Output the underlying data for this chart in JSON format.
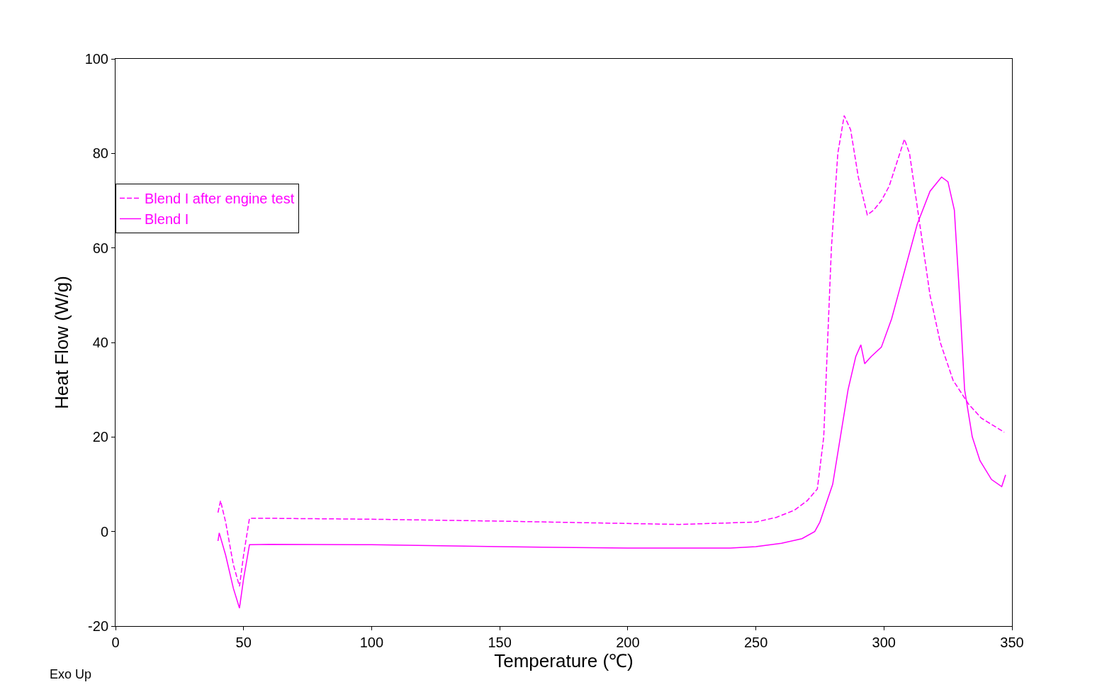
{
  "chart_data": {
    "type": "line",
    "xlabel": "Temperature (℃)",
    "ylabel": "Heat Flow (W/g)",
    "annotations": [
      "Exo Up"
    ],
    "xlim": [
      0,
      350
    ],
    "xticks": [
      0,
      50,
      100,
      150,
      200,
      250,
      300,
      350
    ],
    "ylim": [
      -20,
      100
    ],
    "yticks": [
      -20,
      0,
      20,
      40,
      60,
      80,
      100
    ],
    "legend": "top left",
    "marker": "none",
    "series": [
      {
        "name": "Blend I after engine test",
        "color": "#ff00ff",
        "line_style": "dashed",
        "x": [
          40,
          41,
          43,
          46,
          48.4,
          50,
          52.3,
          60,
          100,
          150,
          200,
          220,
          250,
          258,
          265,
          270,
          274,
          276.5,
          278,
          279.5,
          282,
          284.5,
          287,
          290,
          293.5,
          296,
          299,
          302,
          305,
          308,
          310,
          314,
          318,
          322,
          327,
          333,
          338,
          347
        ],
        "values": [
          4,
          6.5,
          2,
          -7,
          -11.6,
          -5,
          2.8,
          2.8,
          2.6,
          2.2,
          1.7,
          1.5,
          2,
          3,
          4.5,
          6.5,
          9,
          20,
          40,
          60,
          80,
          88,
          85,
          75,
          67,
          68,
          70,
          73,
          78,
          83,
          80,
          65,
          50,
          40,
          32,
          27,
          24,
          21
        ]
      },
      {
        "name": "Blend I",
        "color": "#ff00ff",
        "line_style": "solid",
        "x": [
          40,
          40.5,
          43,
          46,
          48.4,
          50,
          52.3,
          60,
          100,
          150,
          200,
          240,
          250,
          260,
          268,
          273,
          275,
          280,
          283,
          286,
          289,
          291,
          292.5,
          295,
          299,
          303,
          308,
          313,
          318,
          322.5,
          325,
          327.5,
          329.5,
          331.5,
          334.5,
          337.5,
          342,
          346,
          347.5
        ],
        "values": [
          -2,
          -0.3,
          -5,
          -12,
          -16.2,
          -10,
          -2.8,
          -2.7,
          -2.8,
          -3.2,
          -3.5,
          -3.5,
          -3.2,
          -2.5,
          -1.5,
          0,
          2,
          10,
          20,
          30,
          37,
          39.5,
          35.5,
          37,
          39,
          45,
          55,
          65,
          72,
          75,
          74,
          68,
          50,
          30,
          20,
          15,
          11,
          9.5,
          12
        ]
      }
    ]
  }
}
